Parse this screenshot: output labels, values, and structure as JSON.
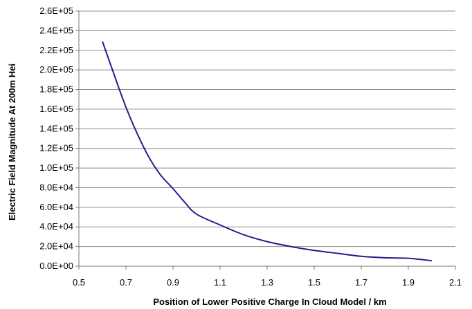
{
  "chart_data": {
    "type": "line",
    "xlabel": "Position of Lower Positive Charge In Cloud Model / km",
    "ylabel": "Electric Field Magnitude At 200m Hei",
    "xlim": [
      0.5,
      2.1
    ],
    "ylim": [
      0,
      260000
    ],
    "x_ticks": [
      "0.5",
      "0.7",
      "0.9",
      "1.1",
      "1.3",
      "1.5",
      "1.7",
      "1.9",
      "2.1"
    ],
    "y_ticks": [
      "0.0E+00",
      "2.0E+04",
      "4.0E+04",
      "6.0E+04",
      "8.0E+04",
      "1.0E+05",
      "1.2E+05",
      "1.4E+05",
      "1.6E+05",
      "1.8E+05",
      "2.0E+05",
      "2.2E+05",
      "2.4E+05",
      "2.6E+05"
    ],
    "grid": "horizontal",
    "series_color": "#1f1f8c",
    "series": [
      {
        "x": [
          0.6,
          0.65,
          0.7,
          0.75,
          0.8,
          0.85,
          0.9,
          0.95,
          1.0,
          1.1,
          1.2,
          1.3,
          1.4,
          1.5,
          1.6,
          1.7,
          1.8,
          1.9,
          2.0
        ],
        "y": [
          229000,
          195000,
          162000,
          134000,
          110000,
          92000,
          79000,
          65000,
          53000,
          42000,
          32000,
          25000,
          20000,
          16000,
          13000,
          10000,
          8500,
          8000,
          5500
        ]
      }
    ]
  }
}
